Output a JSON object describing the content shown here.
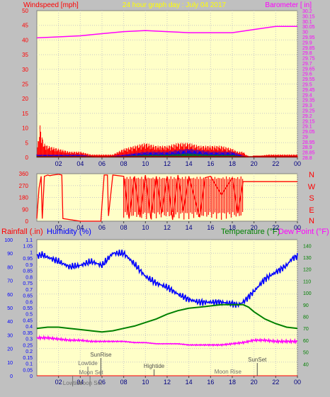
{
  "colors": {
    "background": "#c0c0c0",
    "plot_background": "#ffffc8",
    "grid": "#c8c8c8",
    "wind": "#ff0000",
    "gust_blue": "#0000ff",
    "gust_green": "#008000",
    "barometer": "#ff00ff",
    "humidity": "#0000ff",
    "temperature": "#008000",
    "dewpoint": "#ff00ff",
    "rainfall": "#ff0000",
    "title": "#ffff00",
    "tide_text": "#707070",
    "sun_text": "#505050"
  },
  "header": {
    "left_label": "Windspeed [mph]",
    "title": "24 hour graph day : July 04 2017",
    "right_label": "Barometer [ in]"
  },
  "footer_labels": {
    "rainfall": "Rainfall (.in)",
    "humidity": "Humidity (%)",
    "temperature": "Temperature (°F)",
    "dewpoint": "Dew Point (°F)"
  },
  "compass": [
    "N",
    "W",
    "S",
    "E",
    "N"
  ],
  "events": [
    {
      "label": "Moon Set",
      "t": 5.0
    },
    {
      "label": "Lowtide",
      "t": 4.7
    },
    {
      "label": "SunRise",
      "t": 5.9
    },
    {
      "label": "Hightide",
      "t": 10.8
    },
    {
      "label": "Moon Rise",
      "t": 17.6
    },
    {
      "label": "SunSet",
      "t": 20.3
    },
    {
      "label": "Lowtide",
      "t": 3.3
    },
    {
      "label": "Moon Set",
      "t": 4.9
    }
  ],
  "chart_data": [
    {
      "type": "line",
      "name": "wind-barometer",
      "xlabel": "",
      "x_ticks": [
        "02",
        "04",
        "06",
        "08",
        "10",
        "12",
        "14",
        "16",
        "18",
        "20",
        "22",
        "00"
      ],
      "ylabel_left": "Windspeed [mph]",
      "ylim_left": [
        0,
        50
      ],
      "y_ticks_left": [
        0,
        5,
        10,
        15,
        20,
        25,
        30,
        35,
        40,
        45,
        50
      ],
      "ylabel_right": "Barometer [ in]",
      "ylim_right": [
        28.8,
        30.2
      ],
      "y_ticks_right": [
        "28.8",
        "28.85",
        "28.9",
        "28.95",
        "29",
        "29.05",
        "29.1",
        "29.15",
        "29.2",
        "29.25",
        "29.3",
        "29.35",
        "29.4",
        "29.45",
        "29.5",
        "29.55",
        "29.6",
        "29.65",
        "29.7",
        "29.75",
        "29.8",
        "29.85",
        "29.9",
        "29.95",
        "30",
        "30.05",
        "30.1",
        "30.15",
        "30.2"
      ],
      "series": [
        {
          "name": "Barometer",
          "axis": "right",
          "x": [
            0,
            2,
            4,
            6,
            8,
            10,
            12,
            14,
            16,
            18,
            20,
            22,
            24
          ],
          "y": [
            29.94,
            29.95,
            29.96,
            29.98,
            30.0,
            30.01,
            30.0,
            29.99,
            29.99,
            29.99,
            30.02,
            30.05,
            30.05
          ]
        },
        {
          "name": "Wind",
          "axis": "left",
          "x": [
            0,
            0.3,
            0.6,
            1,
            2,
            3,
            4,
            5,
            6,
            7,
            8,
            9,
            10,
            11,
            12,
            13,
            14,
            15,
            16,
            17,
            18,
            18.5,
            19,
            19.5,
            21.3,
            23.9
          ],
          "y": [
            2,
            11,
            5,
            4,
            3,
            2,
            2,
            1,
            1,
            1,
            3,
            4,
            5,
            4,
            4,
            5,
            5,
            4,
            4,
            4,
            3,
            2,
            2,
            0,
            1,
            1
          ]
        },
        {
          "name": "Gust",
          "axis": "left",
          "x": [
            0,
            2,
            4,
            6,
            8,
            10,
            12,
            14,
            16,
            18,
            19.5,
            24
          ],
          "y": [
            1,
            1,
            1,
            0,
            1,
            2,
            2,
            3,
            2,
            2,
            0,
            0
          ]
        }
      ]
    },
    {
      "type": "line",
      "name": "wind-direction",
      "ylim": [
        0,
        360
      ],
      "y_ticks": [
        0,
        90,
        180,
        270,
        360
      ],
      "series": [
        {
          "name": "Direction",
          "x": [
            0,
            0.2,
            0.4,
            0.5,
            0.7,
            1.0,
            1.2,
            1.5,
            2.0,
            2.3,
            2.4,
            4.0,
            5.9,
            6.0,
            6.2,
            6.5,
            6.6,
            7.0,
            8.0,
            8.5,
            9.0,
            9.5,
            10.0,
            10.5,
            11.0,
            11.5,
            12.0,
            12.5,
            13.0,
            13.5,
            14.0,
            15.0,
            15.5,
            16.0,
            17.0,
            18.0,
            18.5,
            19.0,
            19.5,
            24.0
          ],
          "y": [
            20,
            250,
            340,
            20,
            340,
            350,
            345,
            350,
            355,
            350,
            20,
            0,
            0,
            120,
            350,
            350,
            40,
            350,
            340,
            20,
            340,
            30,
            350,
            20,
            340,
            60,
            340,
            10,
            350,
            80,
            340,
            30,
            330,
            340,
            200,
            330,
            60,
            300,
            300,
            300
          ]
        }
      ]
    },
    {
      "type": "line",
      "name": "temperature-humidity",
      "ylabel_left_outer": "Rainfall (.in)",
      "ylim_left_outer": [
        0,
        100
      ],
      "y_ticks_left_outer": [
        0,
        10,
        20,
        30,
        40,
        50,
        60,
        70,
        80,
        90,
        100
      ],
      "ylabel_left_inner": "Humidity (%)",
      "ylim_left_inner": [
        0,
        1.1
      ],
      "y_ticks_left_inner": [
        "0",
        "0.05",
        "0.1",
        "0.15",
        "0.2",
        "0.25",
        "0.3",
        "0.35",
        "0.4",
        "0.45",
        "0.5",
        "0.55",
        "0.6",
        "0.65",
        "0.7",
        "0.75",
        "0.8",
        "0.85",
        "0.9",
        "0.95",
        "1",
        "1.05",
        "1.1"
      ],
      "ylabel_right": "Temperature (°F)",
      "ylim_right": [
        30,
        145
      ],
      "y_ticks_right": [
        40,
        50,
        60,
        70,
        80,
        90,
        100,
        110,
        120,
        130,
        140
      ],
      "series": [
        {
          "name": "Humidity",
          "axis": "left_outer",
          "x": [
            0,
            0.5,
            1,
            2,
            3,
            4,
            5,
            6,
            7,
            8,
            9,
            10,
            11,
            12,
            13,
            14,
            15,
            16,
            17,
            18,
            18.5,
            19,
            20,
            21,
            22,
            23,
            23.5,
            24
          ],
          "y": [
            88,
            89,
            87,
            84,
            80,
            81,
            84,
            81,
            90,
            90,
            82,
            73,
            68,
            65,
            60,
            56,
            54,
            54,
            54,
            53,
            52,
            54,
            62,
            71,
            76,
            81,
            86,
            88
          ]
        },
        {
          "name": "Temperature",
          "axis": "right",
          "x": [
            0,
            1,
            2,
            3,
            4,
            5,
            6,
            7,
            8,
            9,
            10,
            11,
            12,
            13,
            14,
            15,
            16,
            17,
            18,
            19,
            19.5,
            20,
            21,
            22,
            23,
            24
          ],
          "y": [
            70,
            71,
            71,
            70,
            69,
            68,
            67,
            68,
            70,
            72,
            75,
            78,
            82,
            85,
            87,
            88,
            89,
            90,
            90,
            90,
            88,
            84,
            78,
            74,
            71,
            70
          ]
        },
        {
          "name": "Dew Point",
          "axis": "right",
          "x": [
            0,
            1,
            2,
            3,
            4,
            5,
            6,
            7,
            8,
            9,
            10,
            11,
            12,
            13,
            14,
            15,
            16,
            17,
            18,
            19,
            20,
            21,
            22,
            23,
            24
          ],
          "y": [
            62,
            62,
            61,
            60,
            60,
            59,
            59,
            59,
            59,
            58,
            58,
            57,
            57,
            57,
            56,
            56,
            56,
            56,
            57,
            58,
            60,
            60,
            59,
            59,
            59
          ]
        },
        {
          "name": "Rainfall",
          "axis": "left_inner",
          "x": [
            0,
            24
          ],
          "y": [
            0,
            0
          ]
        }
      ]
    }
  ]
}
